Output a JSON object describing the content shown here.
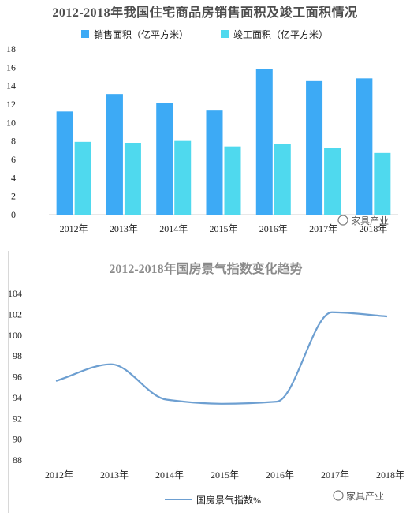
{
  "chart_data": [
    {
      "type": "bar",
      "title": "2012-2018年我国住宅商品房销售面积及竣工面积情况",
      "categories": [
        "2012年",
        "2013年",
        "2014年",
        "2015年",
        "2016年",
        "2017年",
        "2018年"
      ],
      "series": [
        {
          "name": "销售面积（亿平方米）",
          "values": [
            11.2,
            13.1,
            12.1,
            11.3,
            15.8,
            14.5,
            14.8
          ],
          "color": "#3daaf5"
        },
        {
          "name": "竣工面积（亿平方米）",
          "values": [
            7.9,
            7.8,
            8.0,
            7.4,
            7.7,
            7.2,
            6.7
          ],
          "color": "#4fd9ee"
        }
      ],
      "xlabel": "",
      "ylabel": "",
      "ylim": [
        0,
        18
      ],
      "yticks": [
        0,
        2,
        4,
        6,
        8,
        10,
        12,
        14,
        16,
        18
      ],
      "grid": false,
      "legend": "top"
    },
    {
      "type": "line",
      "title": "2012-2018年国房景气指数变化趋势",
      "categories": [
        "2012年",
        "2013年",
        "2014年",
        "2015年",
        "2016年",
        "2017年",
        "2018年"
      ],
      "series": [
        {
          "name": "国房景气指数%",
          "values": [
            95.6,
            97.2,
            93.8,
            93.4,
            93.6,
            102.2,
            101.8
          ],
          "color": "#6d9fd1"
        }
      ],
      "xlabel": "",
      "ylabel": "",
      "ylim": [
        88,
        104
      ],
      "yticks": [
        88,
        90,
        92,
        94,
        96,
        98,
        100,
        102,
        104
      ],
      "grid": false,
      "legend": "bottom"
    }
  ],
  "watermark": "家具产业"
}
